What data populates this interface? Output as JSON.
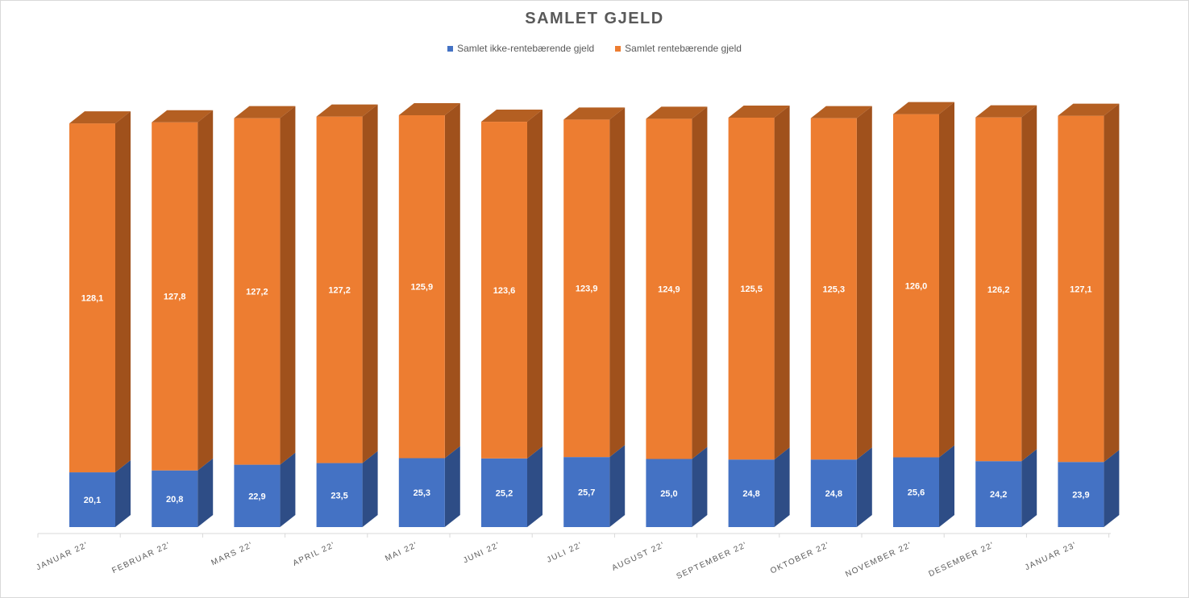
{
  "chart_data": {
    "type": "bar",
    "stacked": true,
    "three_d": true,
    "title": "SAMLET GJELD",
    "legend_position": "top",
    "grid": false,
    "categories": [
      "JANUAR 22'",
      "FEBRUAR 22'",
      "MARS 22'",
      "APRIL 22'",
      "MAI 22'",
      "JUNI 22'",
      "JULI 22'",
      "AUGUST 22'",
      "SEPTEMBER 22'",
      "OKTOBER 22'",
      "NOVEMBER 22'",
      "DESEMBER 22'",
      "JANUAR 23'"
    ],
    "series": [
      {
        "name": "Samlet ikke-rentebærende gjeld",
        "color": "#4472c4",
        "values": [
          20.1,
          20.8,
          22.9,
          23.5,
          25.3,
          25.2,
          25.7,
          25.0,
          24.8,
          24.8,
          25.6,
          24.2,
          23.9
        ],
        "labels": [
          "20,1",
          "20,8",
          "22,9",
          "23,5",
          "25,3",
          "25,2",
          "25,7",
          "25,0",
          "24,8",
          "24,8",
          "25,6",
          "24,2",
          "23,9"
        ]
      },
      {
        "name": "Samlet rentebærende gjeld",
        "color": "#ed7d31",
        "values": [
          128.1,
          127.8,
          127.2,
          127.2,
          125.9,
          123.6,
          123.9,
          124.9,
          125.5,
          125.3,
          126.0,
          126.2,
          127.1
        ],
        "labels": [
          "128,1",
          "127,8",
          "127,2",
          "127,2",
          "125,9",
          "123,6",
          "123,9",
          "124,9",
          "125,5",
          "125,3",
          "126,0",
          "126,2",
          "127,1"
        ]
      }
    ]
  }
}
